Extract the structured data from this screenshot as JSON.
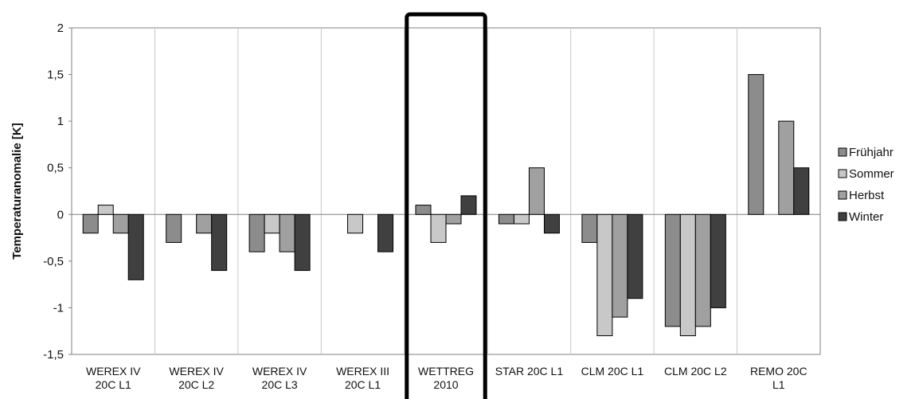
{
  "chart_data": {
    "type": "bar",
    "ylabel": "Temperaturanomalie [K]",
    "ylim": [
      -1.5,
      2
    ],
    "yticks": [
      "2",
      "1,5",
      "1",
      "0,5",
      "0",
      "-0,5",
      "-1",
      "-1,5"
    ],
    "grid": "vertical category separators",
    "legend_position": "right",
    "highlighted_category_index": 4,
    "categories": [
      [
        "WEREX IV",
        "20C L1"
      ],
      [
        "WEREX IV",
        "20C L2"
      ],
      [
        "WEREX IV",
        "20C L3"
      ],
      [
        "WEREX III",
        "20C L1"
      ],
      [
        "WETTREG",
        "2010"
      ],
      [
        "STAR 20C L1"
      ],
      [
        "CLM 20C L1"
      ],
      [
        "CLM 20C L2"
      ],
      [
        "REMO 20C",
        "L1"
      ]
    ],
    "series": [
      {
        "name": "Frühjahr",
        "color": "#8c8c8c",
        "values": [
          -0.2,
          -0.3,
          -0.4,
          null,
          0.1,
          -0.1,
          -0.3,
          -1.2,
          1.5
        ]
      },
      {
        "name": "Sommer",
        "color": "#c8c8c8",
        "values": [
          0.1,
          null,
          -0.2,
          -0.2,
          -0.3,
          -0.1,
          -1.3,
          -1.3,
          null
        ]
      },
      {
        "name": "Herbst",
        "color": "#a0a0a0",
        "values": [
          -0.2,
          -0.2,
          -0.4,
          null,
          -0.1,
          0.5,
          -1.1,
          -1.2,
          1.0
        ]
      },
      {
        "name": "Winter",
        "color": "#404040",
        "values": [
          -0.7,
          -0.6,
          -0.6,
          -0.4,
          0.2,
          -0.2,
          -0.9,
          -1.0,
          0.5
        ]
      }
    ]
  }
}
